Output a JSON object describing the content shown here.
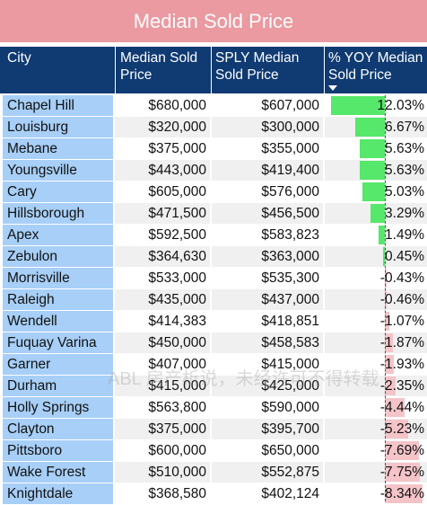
{
  "title": "Median Sold Price",
  "columns": [
    "City",
    "Median Sold Price",
    "SPLY Median Sold Price",
    "% YOY Median Sold Price"
  ],
  "sort_icon": "sort-descending-icon",
  "watermark": "ABL 房产析说，未经许可不得转载",
  "colors": {
    "title_bg": "#ea9aa0",
    "header_bg": "#0f3a72",
    "city_bg": "#a7cff7",
    "positive": "#55e86a",
    "negative": "#f4c4c8"
  },
  "chart_data": {
    "type": "table",
    "columns": [
      "City",
      "Median Sold Price",
      "SPLY Median Sold Price",
      "% YOY Median Sold Price"
    ],
    "rows": [
      {
        "city": "Chapel Hill",
        "median": "$680,000",
        "sply": "$607,000",
        "yoy_label": "12.03%",
        "yoy": 12.03
      },
      {
        "city": "Louisburg",
        "median": "$320,000",
        "sply": "$300,000",
        "yoy_label": "6.67%",
        "yoy": 6.67
      },
      {
        "city": "Mebane",
        "median": "$375,000",
        "sply": "$355,000",
        "yoy_label": "5.63%",
        "yoy": 5.63
      },
      {
        "city": "Youngsville",
        "median": "$443,000",
        "sply": "$419,400",
        "yoy_label": "5.63%",
        "yoy": 5.63
      },
      {
        "city": "Cary",
        "median": "$605,000",
        "sply": "$576,000",
        "yoy_label": "5.03%",
        "yoy": 5.03
      },
      {
        "city": "Hillsborough",
        "median": "$471,500",
        "sply": "$456,500",
        "yoy_label": "3.29%",
        "yoy": 3.29
      },
      {
        "city": "Apex",
        "median": "$592,500",
        "sply": "$583,823",
        "yoy_label": "1.49%",
        "yoy": 1.49
      },
      {
        "city": "Zebulon",
        "median": "$364,630",
        "sply": "$363,000",
        "yoy_label": "0.45%",
        "yoy": 0.45
      },
      {
        "city": "Morrisville",
        "median": "$533,000",
        "sply": "$535,300",
        "yoy_label": "-0.43%",
        "yoy": -0.43
      },
      {
        "city": "Raleigh",
        "median": "$435,000",
        "sply": "$437,000",
        "yoy_label": "-0.46%",
        "yoy": -0.46
      },
      {
        "city": "Wendell",
        "median": "$414,383",
        "sply": "$418,851",
        "yoy_label": "-1.07%",
        "yoy": -1.07
      },
      {
        "city": "Fuquay Varina",
        "median": "$450,000",
        "sply": "$458,583",
        "yoy_label": "-1.87%",
        "yoy": -1.87
      },
      {
        "city": "Garner",
        "median": "$407,000",
        "sply": "$415,000",
        "yoy_label": "-1.93%",
        "yoy": -1.93
      },
      {
        "city": "Durham",
        "median": "$415,000",
        "sply": "$425,000",
        "yoy_label": "-2.35%",
        "yoy": -2.35
      },
      {
        "city": "Holly Springs",
        "median": "$563,800",
        "sply": "$590,000",
        "yoy_label": "-4.44%",
        "yoy": -4.44
      },
      {
        "city": "Clayton",
        "median": "$375,000",
        "sply": "$395,700",
        "yoy_label": "-5.23%",
        "yoy": -5.23
      },
      {
        "city": "Pittsboro",
        "median": "$600,000",
        "sply": "$650,000",
        "yoy_label": "-7.69%",
        "yoy": -7.69
      },
      {
        "city": "Wake Forest",
        "median": "$510,000",
        "sply": "$552,875",
        "yoy_label": "-7.75%",
        "yoy": -7.75
      },
      {
        "city": "Knightdale",
        "median": "$368,580",
        "sply": "$402,124",
        "yoy_label": "-8.34%",
        "yoy": -8.34
      }
    ]
  }
}
